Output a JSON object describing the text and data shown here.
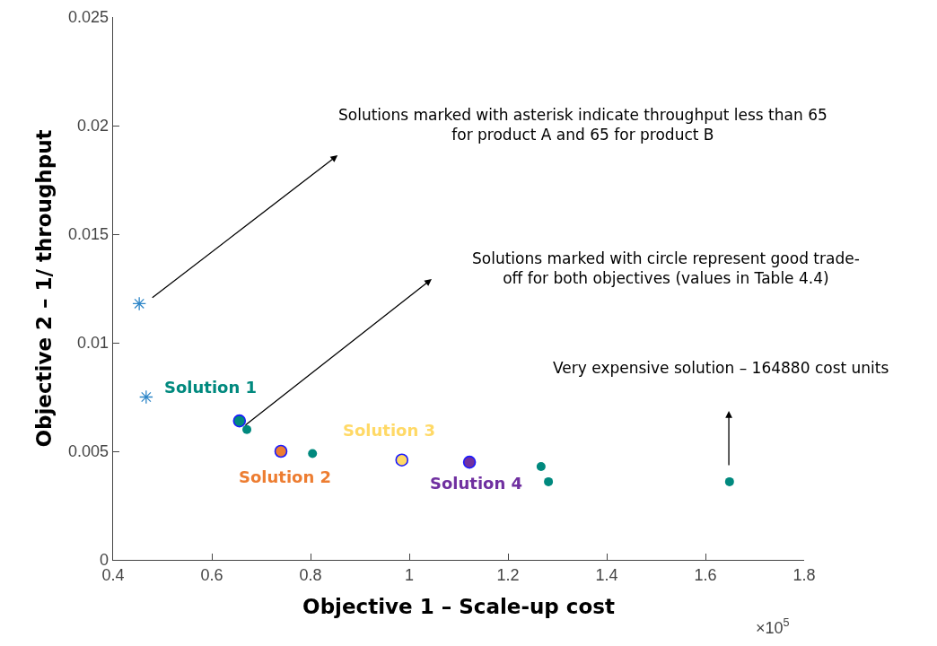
{
  "chart_data": {
    "type": "scatter",
    "xlabel": "Objective 1 – Scale-up cost",
    "ylabel": "Objective 2 – 1/ throughput",
    "xlim": [
      0.4,
      1.8
    ],
    "xticks": [
      0.4,
      0.6,
      0.8,
      1,
      1.2,
      1.4,
      1.6,
      1.8
    ],
    "ylim": [
      0,
      0.025
    ],
    "yticks": [
      0,
      0.005,
      0.01,
      0.015,
      0.02,
      0.025
    ],
    "grid": false,
    "series": [
      {
        "marker": "cross",
        "color": "#2e86c8",
        "x": [
          0.453,
          0.467
        ],
        "values": [
          0.0118,
          0.0075
        ]
      },
      {
        "marker": "circle",
        "color": "#00897e",
        "x": [
          0.671,
          0.804,
          1.267,
          1.282,
          1.6488
        ],
        "values": [
          0.006,
          0.0049,
          0.0043,
          0.0036,
          0.0036
        ]
      },
      {
        "marker": "circle",
        "color": "#1a1aff",
        "colors": [
          "#00897e",
          "#ed7d31",
          "#ffd966",
          "#7030a0"
        ],
        "x": [
          0.656,
          0.74,
          0.985,
          1.122
        ],
        "values": [
          0.0064,
          0.005,
          0.0046,
          0.0045
        ]
      }
    ],
    "annotations": [
      {
        "text": "Solution 1",
        "x": 0.656,
        "y": 0.0064
      },
      {
        "text": "Solution 2",
        "x": 0.74,
        "y": 0.005
      },
      {
        "text": "Solution 3",
        "x": 0.985,
        "y": 0.0046
      },
      {
        "text": "Solution 4",
        "x": 1.122,
        "y": 0.0045
      },
      "Solutions marked with asterisk indicate throughput less than 65\nfor product A and 65 for product B",
      "Solutions marked with circle represent good trade-\noff for both objectives (values in Table 4.4)",
      "Very expensive solution – 164880 cost units",
      "×10$^{5}$"
    ]
  }
}
